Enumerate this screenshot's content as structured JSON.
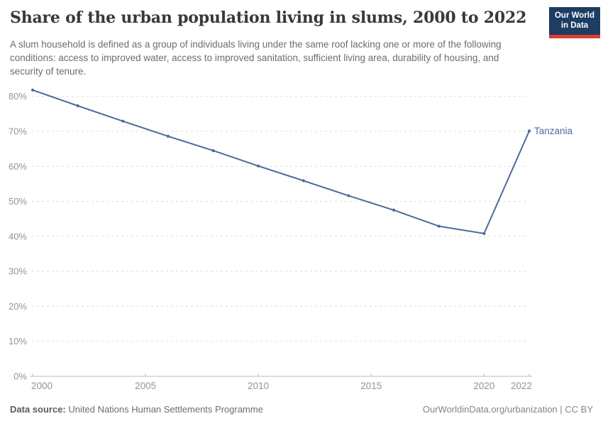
{
  "header": {
    "title": "Share of the urban population living in slums, 2000 to 2022",
    "subtitle": "A slum household is defined as a group of individuals living under the same roof lacking one or more of the following conditions: access to improved water, access to improved sanitation, sufficient living area, durability of housing, and security of tenure.",
    "logo": {
      "line1": "Our World",
      "line2": "in Data"
    }
  },
  "chart_data": {
    "type": "line",
    "title": "Share of the urban population living in slums, 2000 to 2022",
    "xlabel": "",
    "ylabel": "",
    "x": [
      2000,
      2002,
      2004,
      2006,
      2008,
      2010,
      2012,
      2014,
      2016,
      2018,
      2020,
      2022
    ],
    "series": [
      {
        "name": "Tanzania",
        "color": "#4C6A9C",
        "values": [
          81.8,
          77.3,
          72.9,
          68.6,
          64.5,
          60.1,
          55.9,
          51.6,
          47.5,
          42.9,
          40.8,
          70.1
        ]
      }
    ],
    "x_ticks": [
      2000,
      2005,
      2010,
      2015,
      2020,
      2022
    ],
    "y_ticks": [
      0,
      10,
      20,
      30,
      40,
      50,
      60,
      70,
      80
    ],
    "y_tick_suffix": "%",
    "xlim": [
      2000,
      2022
    ],
    "ylim": [
      0,
      80
    ],
    "grid": "horizontal-dashed",
    "legend_position": "end-of-line"
  },
  "footer": {
    "source_label": "Data source:",
    "source_text": "United Nations Human Settlements Programme",
    "attribution": "OurWorldinData.org/urbanization | CC BY"
  },
  "colors": {
    "line": "#4C6A9C",
    "gridline": "#dcdcdc",
    "axis": "#b8b8b8",
    "tick_label": "#949494",
    "logo_bg": "#1d3d63",
    "logo_accent": "#dc3e32",
    "title": "#383838",
    "subtitle": "#6d6d6d"
  }
}
